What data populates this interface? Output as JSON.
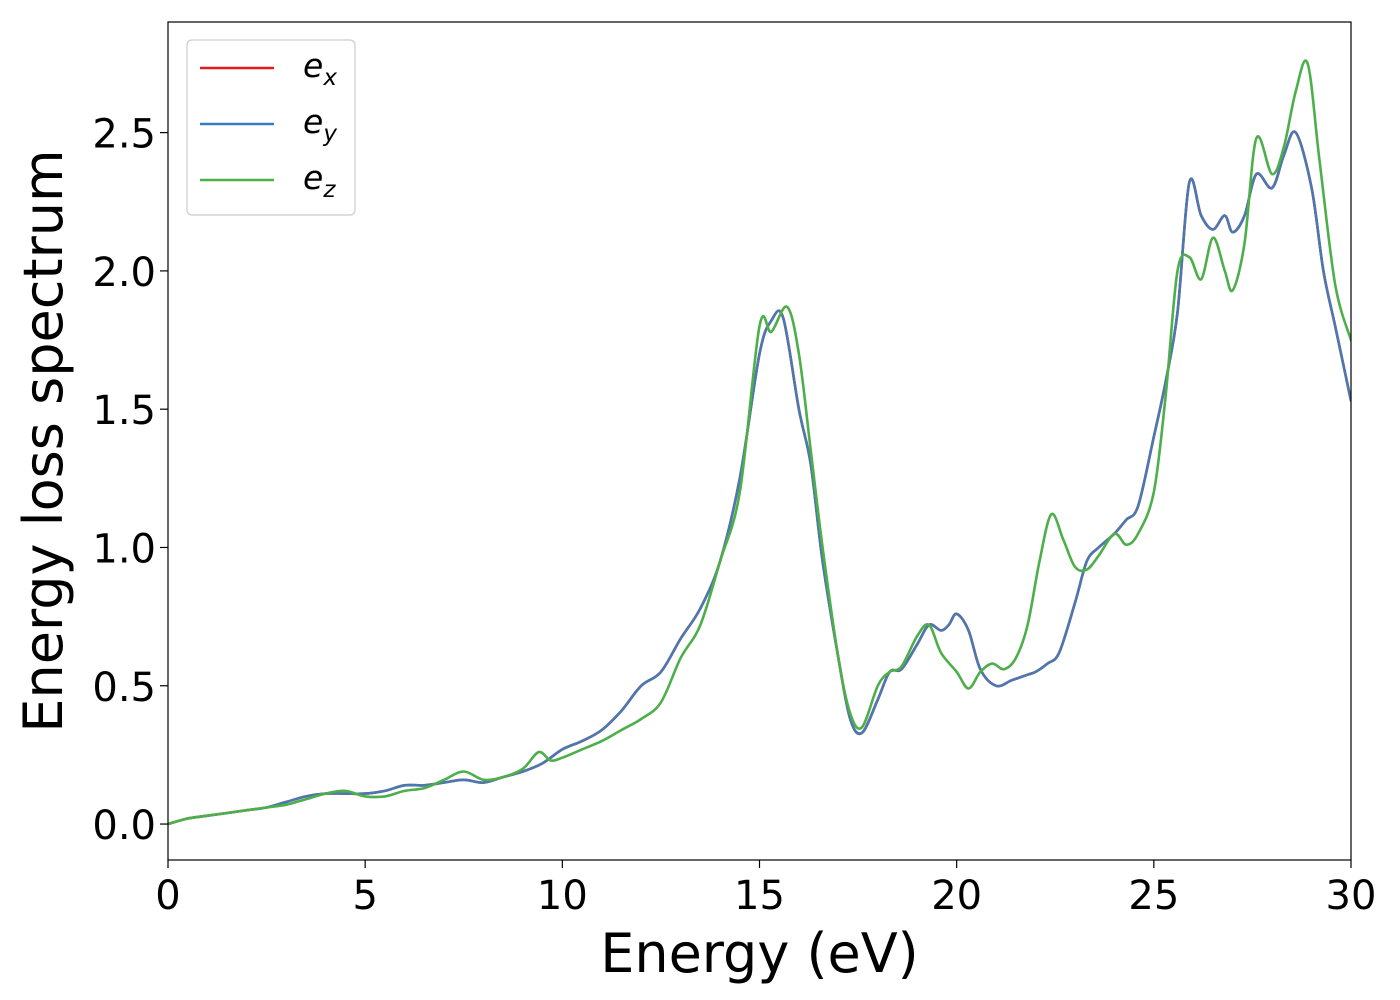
{
  "chart_data": {
    "type": "line",
    "xlabel": "Energy (eV)",
    "ylabel": "Energy loss spectrum",
    "xlim": [
      0,
      30
    ],
    "ylim": [
      -0.13,
      2.9
    ],
    "xticks": [
      0,
      5,
      10,
      15,
      20,
      25,
      30
    ],
    "xtick_labels": [
      "0",
      "5",
      "10",
      "15",
      "20",
      "25",
      "30"
    ],
    "yticks": [
      0.0,
      0.5,
      1.0,
      1.5,
      2.0,
      2.5
    ],
    "ytick_labels": [
      "0.0",
      "0.5",
      "1.0",
      "1.5",
      "2.0",
      "2.5"
    ],
    "grid": false,
    "legend_placement": "top-left",
    "legend": [
      {
        "base": "e",
        "sub": "x",
        "color": "#e41a1c"
      },
      {
        "base": "e",
        "sub": "y",
        "color": "#377eb8"
      },
      {
        "base": "e",
        "sub": "z",
        "color": "#4daf4a"
      }
    ],
    "series": [
      {
        "color": "#e41a1c",
        "x": [
          0,
          0.5,
          1,
          1.5,
          2,
          2.5,
          3,
          3.5,
          4,
          4.5,
          5,
          5.5,
          6,
          6.5,
          7,
          7.5,
          8,
          8.5,
          9,
          9.5,
          10,
          10.5,
          11,
          11.5,
          12,
          12.5,
          13,
          13.5,
          14,
          14.5,
          15,
          15.3,
          15.6,
          16,
          16.3,
          16.6,
          17,
          17.3,
          17.6,
          18,
          18.3,
          18.6,
          19,
          19.3,
          19.6,
          19.8,
          20,
          20.3,
          20.6,
          21,
          21.4,
          21.8,
          22,
          22.3,
          22.6,
          23,
          23.3,
          23.6,
          24,
          24.3,
          24.6,
          25,
          25.3,
          25.6,
          25.9,
          26.2,
          26.5,
          26.8,
          27,
          27.3,
          27.6,
          28,
          28.3,
          28.6,
          29,
          29.3,
          29.6,
          30
        ],
        "values": [
          0,
          0.02,
          0.03,
          0.04,
          0.05,
          0.06,
          0.08,
          0.1,
          0.11,
          0.11,
          0.11,
          0.12,
          0.14,
          0.14,
          0.15,
          0.16,
          0.15,
          0.17,
          0.19,
          0.22,
          0.27,
          0.3,
          0.34,
          0.41,
          0.5,
          0.55,
          0.67,
          0.78,
          0.95,
          1.25,
          1.7,
          1.82,
          1.83,
          1.5,
          1.3,
          0.95,
          0.6,
          0.38,
          0.33,
          0.45,
          0.55,
          0.56,
          0.65,
          0.72,
          0.7,
          0.72,
          0.76,
          0.7,
          0.56,
          0.5,
          0.52,
          0.54,
          0.55,
          0.58,
          0.62,
          0.8,
          0.95,
          1.0,
          1.05,
          1.1,
          1.15,
          1.4,
          1.6,
          1.85,
          2.32,
          2.2,
          2.15,
          2.2,
          2.14,
          2.2,
          2.35,
          2.3,
          2.42,
          2.5,
          2.3,
          2.0,
          1.8,
          1.53
        ]
      },
      {
        "color": "#4a79b2",
        "x": [
          0,
          0.5,
          1,
          1.5,
          2,
          2.5,
          3,
          3.5,
          4,
          4.5,
          5,
          5.5,
          6,
          6.5,
          7,
          7.5,
          8,
          8.5,
          9,
          9.5,
          10,
          10.5,
          11,
          11.5,
          12,
          12.5,
          13,
          13.5,
          14,
          14.5,
          15,
          15.3,
          15.6,
          16,
          16.3,
          16.6,
          17,
          17.3,
          17.6,
          18,
          18.3,
          18.6,
          19,
          19.3,
          19.6,
          19.8,
          20,
          20.3,
          20.6,
          21,
          21.4,
          21.8,
          22,
          22.3,
          22.6,
          23,
          23.3,
          23.6,
          24,
          24.3,
          24.6,
          25,
          25.3,
          25.6,
          25.9,
          26.2,
          26.5,
          26.8,
          27,
          27.3,
          27.6,
          28,
          28.3,
          28.6,
          29,
          29.3,
          29.6,
          30
        ],
        "values": [
          0,
          0.02,
          0.03,
          0.04,
          0.05,
          0.06,
          0.08,
          0.1,
          0.11,
          0.11,
          0.11,
          0.12,
          0.14,
          0.14,
          0.15,
          0.16,
          0.15,
          0.17,
          0.19,
          0.22,
          0.27,
          0.3,
          0.34,
          0.41,
          0.5,
          0.55,
          0.67,
          0.78,
          0.95,
          1.25,
          1.7,
          1.82,
          1.83,
          1.5,
          1.3,
          0.95,
          0.6,
          0.38,
          0.33,
          0.45,
          0.55,
          0.56,
          0.65,
          0.72,
          0.7,
          0.72,
          0.76,
          0.7,
          0.56,
          0.5,
          0.52,
          0.54,
          0.55,
          0.58,
          0.62,
          0.8,
          0.95,
          1.0,
          1.05,
          1.1,
          1.15,
          1.4,
          1.6,
          1.85,
          2.32,
          2.2,
          2.15,
          2.2,
          2.14,
          2.2,
          2.35,
          2.3,
          2.42,
          2.5,
          2.3,
          2.0,
          1.8,
          1.53
        ]
      },
      {
        "color": "#4daf4a",
        "x": [
          0,
          0.5,
          1,
          1.5,
          2,
          2.5,
          3,
          3.5,
          4,
          4.5,
          5,
          5.5,
          6,
          6.5,
          7,
          7.5,
          8,
          8.5,
          9,
          9.4,
          9.7,
          10,
          10.5,
          11,
          11.5,
          12,
          12.5,
          13,
          13.5,
          14,
          14.5,
          15,
          15.3,
          15.7,
          16,
          16.3,
          16.6,
          17,
          17.3,
          17.6,
          18,
          18.3,
          18.6,
          19,
          19.3,
          19.6,
          20,
          20.3,
          20.6,
          20.9,
          21.2,
          21.5,
          21.8,
          22.1,
          22.4,
          22.7,
          23,
          23.3,
          23.6,
          24,
          24.3,
          24.6,
          25,
          25.3,
          25.6,
          25.9,
          26.2,
          26.5,
          26.8,
          27,
          27.3,
          27.6,
          28,
          28.3,
          28.6,
          28.9,
          29.2,
          29.6,
          30
        ],
        "values": [
          0,
          0.02,
          0.03,
          0.04,
          0.05,
          0.06,
          0.07,
          0.09,
          0.11,
          0.12,
          0.1,
          0.1,
          0.12,
          0.13,
          0.16,
          0.19,
          0.16,
          0.17,
          0.2,
          0.26,
          0.23,
          0.24,
          0.27,
          0.3,
          0.34,
          0.38,
          0.44,
          0.6,
          0.72,
          0.95,
          1.2,
          1.8,
          1.78,
          1.87,
          1.7,
          1.35,
          1.0,
          0.6,
          0.4,
          0.35,
          0.5,
          0.55,
          0.57,
          0.68,
          0.72,
          0.62,
          0.55,
          0.49,
          0.55,
          0.58,
          0.56,
          0.6,
          0.72,
          0.95,
          1.12,
          1.03,
          0.93,
          0.92,
          0.97,
          1.05,
          1.01,
          1.05,
          1.2,
          1.55,
          2.0,
          2.05,
          1.97,
          2.12,
          2.0,
          1.93,
          2.1,
          2.48,
          2.35,
          2.45,
          2.65,
          2.75,
          2.4,
          1.95,
          1.75
        ]
      }
    ]
  }
}
